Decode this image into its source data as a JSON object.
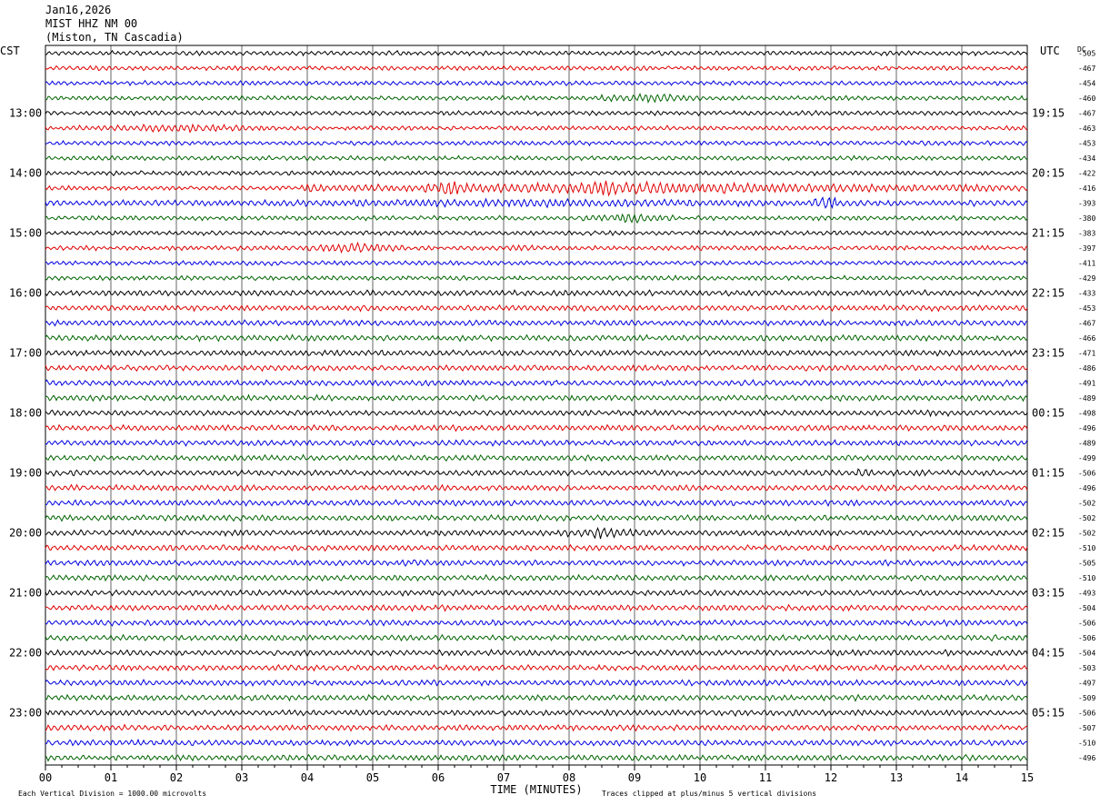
{
  "header": {
    "date": "Jan16,2026",
    "station": "MIST HHZ NM 00",
    "location": "(Miston, TN Cascadia)"
  },
  "labels": {
    "left_timezone": "CST",
    "right_timezone": "UTC",
    "dc_label": "DC",
    "x_axis_title": "TIME (MINUTES)",
    "scale_note": "Each Vertical Division = 1000.00 microvolts",
    "clip_note": "Traces clipped at plus/minus 5 vertical divisions"
  },
  "colors": {
    "trace_cycle": [
      "#000000",
      "#e00000",
      "#0000e0",
      "#006400"
    ],
    "gridline": "#000000"
  },
  "chart_data": {
    "type": "line",
    "title": "MIST HHZ NM 00",
    "xlabel": "TIME (MINUTES)",
    "xlim": [
      0,
      15
    ],
    "x_ticks": [
      "00",
      "01",
      "02",
      "03",
      "04",
      "05",
      "06",
      "07",
      "08",
      "09",
      "10",
      "11",
      "12",
      "13",
      "14",
      "15"
    ],
    "rows_per_hour": 4,
    "left_hour_labels": [
      "13:00",
      "14:00",
      "15:00",
      "16:00",
      "17:00",
      "18:00",
      "19:00",
      "20:00",
      "21:00",
      "22:00",
      "23:00"
    ],
    "right_hour_labels": [
      "19:15",
      "20:15",
      "21:15",
      "22:15",
      "23:15",
      "00:15",
      "01:15",
      "02:15",
      "03:15",
      "04:15",
      "05:15"
    ],
    "dc_offsets": [
      "-505",
      "-467",
      "-454",
      "-460",
      "-467",
      "-463",
      "-453",
      "-434",
      "-422",
      "-416",
      "-393",
      "-380",
      "-383",
      "-397",
      "-411",
      "-429",
      "-433",
      "-453",
      "-467",
      "-466",
      "-471",
      "-486",
      "-491",
      "-489",
      "-498",
      "-496",
      "-489",
      "-499",
      "-506",
      "-496",
      "-502",
      "-502",
      "-502",
      "-510",
      "-505",
      "-510",
      "-493",
      "-504",
      "-506",
      "-506",
      "-504",
      "-503",
      "-497",
      "-509",
      "-506",
      "-507",
      "-510",
      "-496"
    ],
    "events": [
      {
        "row": 3,
        "start_min": 8.5,
        "end_min": 10.0,
        "strength": 2.4
      },
      {
        "row": 5,
        "start_min": 0.5,
        "end_min": 3.6,
        "strength": 2.0
      },
      {
        "row": 9,
        "start_min": 3.9,
        "end_min": 15.0,
        "strength": 3.2
      },
      {
        "row": 9,
        "start_min": 5.8,
        "end_min": 6.5,
        "strength": 5.0
      },
      {
        "row": 9,
        "start_min": 8.1,
        "end_min": 9.0,
        "strength": 5.0
      },
      {
        "row": 10,
        "start_min": 0.0,
        "end_min": 15.0,
        "strength": 2.0
      },
      {
        "row": 10,
        "start_min": 11.7,
        "end_min": 12.2,
        "strength": 4.0
      },
      {
        "row": 11,
        "start_min": 8.2,
        "end_min": 9.6,
        "strength": 2.6
      },
      {
        "row": 13,
        "start_min": 4.0,
        "end_min": 5.5,
        "strength": 2.8
      },
      {
        "row": 13,
        "start_min": 6.7,
        "end_min": 7.8,
        "strength": 1.6
      },
      {
        "row": 28,
        "start_min": 12.3,
        "end_min": 12.7,
        "strength": 2.0
      },
      {
        "row": 32,
        "start_min": 7.8,
        "end_min": 9.2,
        "strength": 2.2
      }
    ]
  }
}
